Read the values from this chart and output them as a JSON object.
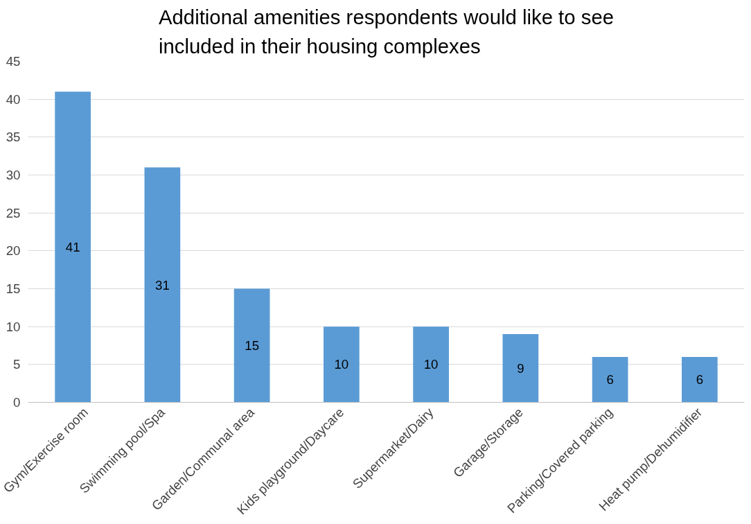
{
  "chart_data": {
    "type": "bar",
    "title": "Additional amenities respondents would like to see included in their housing complexes",
    "categories": [
      "Gym/Exercise room",
      "Swimming pool/Spa",
      "Garden/Communal area",
      "Kids playground/Daycare",
      "Supermarket/Dairy",
      "Garage/Storage",
      "Parking/Covered parking",
      "Heat pump/Dehumidifier"
    ],
    "values": [
      41,
      31,
      15,
      10,
      10,
      9,
      6,
      6
    ],
    "color": "#5b9bd5",
    "ylim": [
      0,
      45
    ],
    "yticks": [
      0,
      5,
      10,
      15,
      20,
      25,
      30,
      35,
      40,
      45
    ],
    "grid": "y",
    "data_labels": true
  }
}
